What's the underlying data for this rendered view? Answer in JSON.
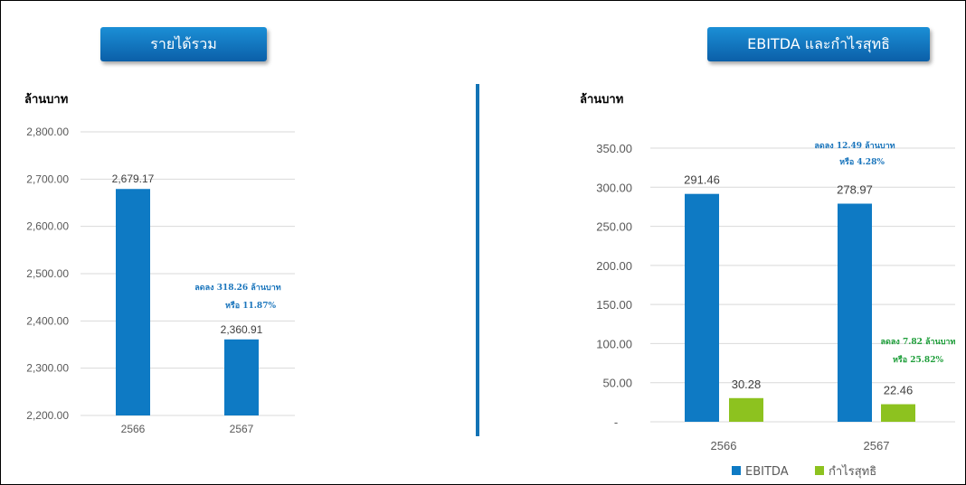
{
  "left_panel": {
    "title": "รายได้รวม",
    "unit": "ล้านบาท"
  },
  "right_panel": {
    "title": "EBITDA และกำไรสุทธิ",
    "unit": "ล้านบาท"
  },
  "colors": {
    "ebitda": "#0e7ac4",
    "net_profit": "#8dc21f",
    "revenue": "#0e7ac4",
    "annotation_blue": "#1a75bc",
    "annotation_green": "#1e9e3a",
    "divider": "#1273b5"
  },
  "chart_data": [
    {
      "type": "bar",
      "title": "รายได้รวม",
      "ylabel": "ล้านบาท",
      "categories": [
        "2566",
        "2567"
      ],
      "series": [
        {
          "values": [
            2679.17,
            2360.91
          ],
          "labels": [
            "2,679.17",
            "2,360.91"
          ]
        }
      ],
      "ylim": [
        2200,
        2800
      ],
      "yticks": [
        {
          "value": 2200,
          "label": "2,200.00"
        },
        {
          "value": 2300,
          "label": "2,300.00"
        },
        {
          "value": 2400,
          "label": "2,400.00"
        },
        {
          "value": 2500,
          "label": "2,500.00"
        },
        {
          "value": 2600,
          "label": "2,600.00"
        },
        {
          "value": 2700,
          "label": "2,700.00"
        },
        {
          "value": 2800,
          "label": "2,800.00"
        }
      ],
      "grid": true,
      "annotations": [
        {
          "lines": [
            "ลดลง 318.26 ล้านบาท",
            "หรือ 11.87%"
          ],
          "color": "#1a75bc"
        }
      ]
    },
    {
      "type": "bar",
      "title": "EBITDA และกำไรสุทธิ",
      "ylabel": "ล้านบาท",
      "categories": [
        "2566",
        "2567"
      ],
      "series": [
        {
          "name": "EBITDA",
          "values": [
            291.46,
            278.97
          ],
          "labels": [
            "291.46",
            "278.97"
          ],
          "color": "#0e7ac4"
        },
        {
          "name": "กำไรสุทธิ",
          "values": [
            30.28,
            22.46
          ],
          "labels": [
            "30.28",
            "22.46"
          ],
          "color": "#8dc21f"
        }
      ],
      "ylim": [
        0,
        350
      ],
      "yticks": [
        {
          "value": 0,
          "label": "-"
        },
        {
          "value": 50,
          "label": "50.00"
        },
        {
          "value": 100,
          "label": "100.00"
        },
        {
          "value": 150,
          "label": "150.00"
        },
        {
          "value": 200,
          "label": "200.00"
        },
        {
          "value": 250,
          "label": "250.00"
        },
        {
          "value": 300,
          "label": "300.00"
        },
        {
          "value": 350,
          "label": "350.00"
        }
      ],
      "grid": true,
      "legend": "bottom",
      "annotations": [
        {
          "lines": [
            "ลดลง 12.49 ล้านบาท",
            "หรือ 4.28%"
          ],
          "color": "#1a75bc"
        },
        {
          "lines": [
            "ลดลง 7.82 ล้านบาท",
            "หรือ 25.82%"
          ],
          "color": "#1e9e3a"
        }
      ]
    }
  ]
}
